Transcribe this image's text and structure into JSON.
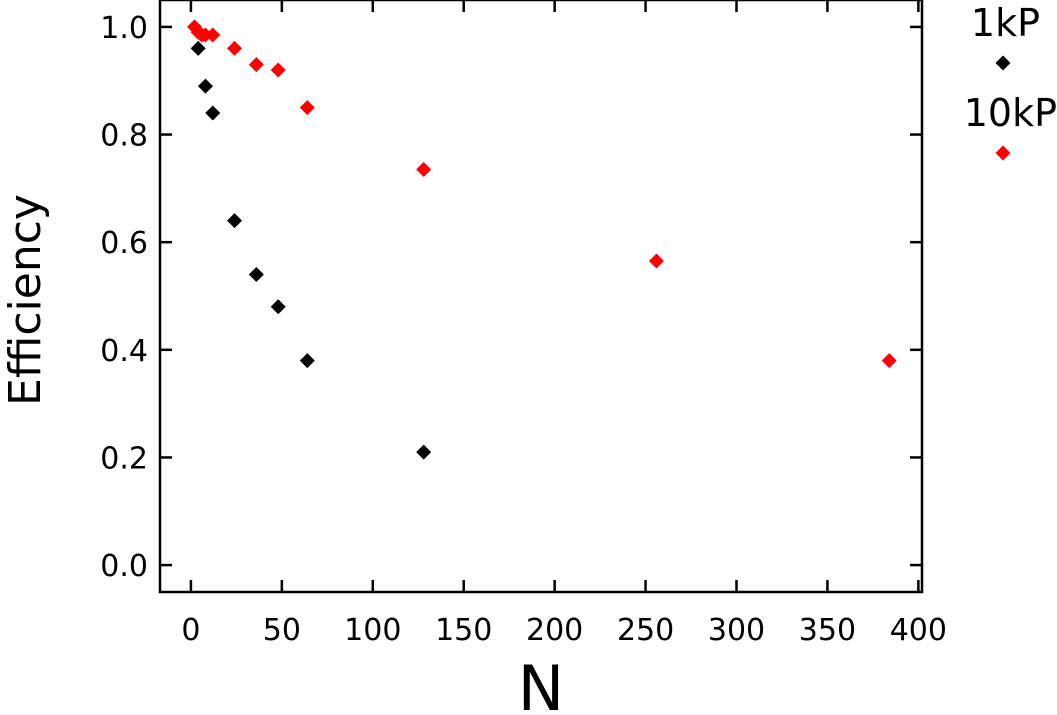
{
  "chart_data": {
    "type": "scatter",
    "title": "",
    "xlabel": "N",
    "ylabel": "Efficiency",
    "xlim": [
      -17,
      402
    ],
    "ylim": [
      -0.05,
      1.05
    ],
    "xticks": [
      0,
      50,
      100,
      150,
      200,
      250,
      300,
      350,
      400
    ],
    "xtick_labels": [
      "0",
      "50",
      "100",
      "150",
      "200",
      "250",
      "300",
      "350",
      "400"
    ],
    "yticks": [
      0.0,
      0.2,
      0.4,
      0.6,
      0.8,
      1.0
    ],
    "ytick_labels": [
      "0.0",
      "0.2",
      "0.4",
      "0.6",
      "0.8",
      "1.0"
    ],
    "grid": false,
    "legend_position": "outside-right",
    "series": [
      {
        "name": "1kP",
        "color": "#000000",
        "marker": "diamond",
        "x": [
          4,
          8,
          12,
          24,
          36,
          48,
          64,
          128
        ],
        "y": [
          0.96,
          0.89,
          0.84,
          0.64,
          0.54,
          0.48,
          0.38,
          0.21
        ]
      },
      {
        "name": "10kP",
        "color": "#ff0000",
        "marker": "diamond",
        "x": [
          2,
          4,
          6,
          8,
          12,
          24,
          36,
          48,
          64,
          128,
          256,
          384
        ],
        "y": [
          1.0,
          0.99,
          0.985,
          0.985,
          0.985,
          0.96,
          0.93,
          0.92,
          0.85,
          0.735,
          0.565,
          0.38
        ]
      }
    ]
  }
}
